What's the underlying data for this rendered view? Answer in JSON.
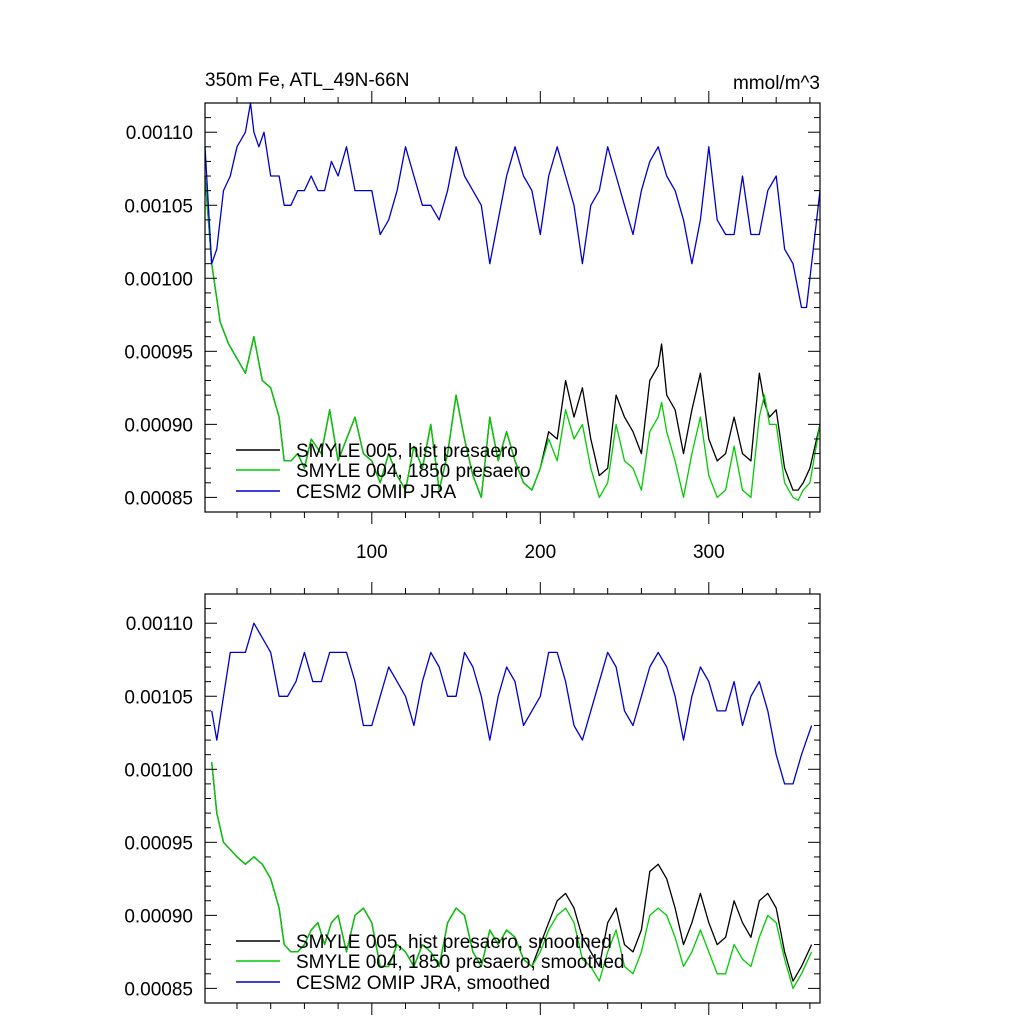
{
  "chart_data": [
    {
      "type": "line",
      "title": "350m Fe, ATL_49N-66N",
      "units": "mmol/m^3",
      "xlim": [
        1,
        366
      ],
      "ylim": [
        0.00084,
        0.00112
      ],
      "x_ticks": [
        100,
        200,
        300
      ],
      "x_tick_labels": [
        "100",
        "200",
        "300"
      ],
      "y_ticks": [
        0.00085,
        0.0009,
        0.00095,
        0.001,
        0.00105,
        0.0011
      ],
      "y_tick_labels": [
        "0.00085",
        "0.00090",
        "0.00095",
        "0.00100",
        "0.00105",
        "0.00110"
      ],
      "legend_position": "bottom-left",
      "series": [
        {
          "name": "SMYLE 005, hist presaero",
          "color": "#000000",
          "x": [
            1,
            5,
            10,
            15,
            20,
            25,
            30,
            35,
            40,
            45,
            48,
            52,
            56,
            60,
            64,
            70,
            75,
            80,
            85,
            90,
            95,
            100,
            105,
            110,
            115,
            120,
            125,
            130,
            135,
            140,
            145,
            150,
            155,
            160,
            165,
            170,
            175,
            180,
            185,
            190,
            195,
            200,
            205,
            210,
            215,
            220,
            225,
            230,
            235,
            240,
            245,
            250,
            255,
            260,
            265,
            270,
            272,
            275,
            280,
            285,
            290,
            295,
            300,
            305,
            310,
            315,
            320,
            325,
            330,
            333,
            336,
            340,
            345,
            350,
            353,
            356,
            360,
            366
          ],
          "y": [
            0.00107,
            0.00101,
            0.00097,
            0.000955,
            0.000945,
            0.000935,
            0.00096,
            0.00093,
            0.000925,
            0.000905,
            0.000875,
            0.000875,
            0.00088,
            0.00087,
            0.00089,
            0.00088,
            0.00091,
            0.000875,
            0.00089,
            0.000905,
            0.00088,
            0.000875,
            0.00086,
            0.00088,
            0.000865,
            0.000855,
            0.000885,
            0.00087,
            0.0009,
            0.000855,
            0.00088,
            0.00092,
            0.00089,
            0.000865,
            0.00085,
            0.000905,
            0.000875,
            0.000895,
            0.000875,
            0.00086,
            0.000855,
            0.00087,
            0.000895,
            0.00089,
            0.00093,
            0.000905,
            0.000925,
            0.00089,
            0.000865,
            0.00087,
            0.00092,
            0.000905,
            0.000895,
            0.00088,
            0.00093,
            0.00094,
            0.000955,
            0.00092,
            0.00091,
            0.00088,
            0.00091,
            0.000935,
            0.00089,
            0.000875,
            0.00088,
            0.000905,
            0.00088,
            0.000875,
            0.000935,
            0.000915,
            0.000905,
            0.00091,
            0.00087,
            0.000855,
            0.000855,
            0.00086,
            0.00087,
            0.0009
          ]
        },
        {
          "name": "SMYLE 004, 1850 presaero",
          "color": "#00cc00",
          "x": [
            1,
            5,
            10,
            15,
            20,
            25,
            30,
            35,
            40,
            45,
            48,
            52,
            56,
            60,
            64,
            70,
            75,
            80,
            85,
            90,
            95,
            100,
            105,
            110,
            115,
            120,
            125,
            130,
            135,
            140,
            145,
            150,
            155,
            160,
            165,
            170,
            175,
            180,
            185,
            190,
            195,
            200,
            205,
            210,
            215,
            220,
            225,
            230,
            235,
            240,
            245,
            250,
            255,
            260,
            265,
            270,
            272,
            275,
            280,
            285,
            290,
            295,
            300,
            305,
            310,
            315,
            320,
            325,
            330,
            333,
            336,
            340,
            345,
            350,
            353,
            356,
            360,
            366
          ],
          "y": [
            0.00107,
            0.00101,
            0.00097,
            0.000955,
            0.000945,
            0.000935,
            0.00096,
            0.00093,
            0.000925,
            0.000905,
            0.000875,
            0.000875,
            0.00088,
            0.00087,
            0.00089,
            0.00088,
            0.00091,
            0.000875,
            0.00089,
            0.000905,
            0.00088,
            0.000875,
            0.00086,
            0.00088,
            0.000865,
            0.000855,
            0.000885,
            0.00087,
            0.0009,
            0.000855,
            0.00088,
            0.00092,
            0.00089,
            0.000865,
            0.00085,
            0.000905,
            0.000875,
            0.000895,
            0.000875,
            0.00086,
            0.000855,
            0.00087,
            0.00089,
            0.000875,
            0.00091,
            0.00089,
            0.0009,
            0.00087,
            0.00085,
            0.00086,
            0.0009,
            0.000875,
            0.00087,
            0.000855,
            0.000895,
            0.000905,
            0.000915,
            0.000895,
            0.000875,
            0.00085,
            0.00088,
            0.000905,
            0.000865,
            0.00085,
            0.000855,
            0.000885,
            0.000855,
            0.00085,
            0.000905,
            0.00092,
            0.0009,
            0.0009,
            0.00086,
            0.00085,
            0.000848,
            0.000855,
            0.00086,
            0.0009
          ]
        },
        {
          "name": "CESM2 OMIP JRA",
          "color": "#0000cc",
          "x": [
            1,
            5,
            8,
            12,
            16,
            20,
            25,
            28,
            30,
            33,
            36,
            40,
            45,
            48,
            52,
            56,
            60,
            64,
            68,
            72,
            76,
            80,
            85,
            90,
            95,
            100,
            105,
            110,
            115,
            120,
            125,
            130,
            135,
            140,
            145,
            150,
            155,
            160,
            165,
            170,
            175,
            180,
            185,
            190,
            195,
            200,
            205,
            210,
            215,
            220,
            225,
            230,
            235,
            240,
            245,
            250,
            255,
            260,
            265,
            270,
            275,
            280,
            285,
            290,
            295,
            300,
            305,
            310,
            315,
            320,
            325,
            330,
            335,
            340,
            345,
            350,
            355,
            358,
            361,
            366
          ],
          "y": [
            0.00109,
            0.00101,
            0.00102,
            0.00106,
            0.00107,
            0.00109,
            0.0011,
            0.00112,
            0.0011,
            0.00109,
            0.0011,
            0.00107,
            0.00107,
            0.00105,
            0.00105,
            0.00106,
            0.00106,
            0.00107,
            0.00106,
            0.00106,
            0.00108,
            0.00107,
            0.00109,
            0.00106,
            0.00106,
            0.00106,
            0.00103,
            0.00104,
            0.00106,
            0.00109,
            0.00107,
            0.00105,
            0.00105,
            0.00104,
            0.00106,
            0.00109,
            0.00107,
            0.00106,
            0.00105,
            0.00101,
            0.00104,
            0.00107,
            0.00109,
            0.00107,
            0.00106,
            0.00103,
            0.00107,
            0.00109,
            0.00107,
            0.00105,
            0.00101,
            0.00105,
            0.00106,
            0.00109,
            0.00107,
            0.00105,
            0.00103,
            0.00106,
            0.00108,
            0.00109,
            0.00107,
            0.00106,
            0.00104,
            0.00101,
            0.00104,
            0.00109,
            0.00104,
            0.00103,
            0.00103,
            0.00107,
            0.00103,
            0.00103,
            0.00106,
            0.00107,
            0.00102,
            0.00101,
            0.00098,
            0.00098,
            0.00101,
            0.00106
          ]
        }
      ]
    },
    {
      "type": "line",
      "title": "",
      "xlim": [
        1,
        366
      ],
      "ylim": [
        0.00084,
        0.00112
      ],
      "x_ticks": [
        100,
        200,
        300
      ],
      "x_tick_labels": [],
      "y_ticks": [
        0.00085,
        0.0009,
        0.00095,
        0.001,
        0.00105,
        0.0011
      ],
      "y_tick_labels": [
        "0.00085",
        "0.00090",
        "0.00095",
        "0.00100",
        "0.00105",
        "0.00110"
      ],
      "legend_position": "bottom-left",
      "series": [
        {
          "name": "SMYLE 005, hist presaero, smoothed",
          "color": "#000000",
          "x": [
            5,
            8,
            12,
            16,
            20,
            25,
            30,
            35,
            40,
            45,
            48,
            52,
            56,
            60,
            64,
            68,
            72,
            76,
            80,
            85,
            90,
            95,
            100,
            105,
            110,
            115,
            120,
            125,
            130,
            135,
            140,
            145,
            150,
            155,
            160,
            165,
            170,
            175,
            180,
            185,
            190,
            195,
            200,
            205,
            210,
            215,
            220,
            225,
            230,
            235,
            240,
            245,
            250,
            255,
            260,
            265,
            270,
            275,
            280,
            285,
            290,
            295,
            300,
            305,
            310,
            315,
            320,
            325,
            330,
            335,
            340,
            345,
            350,
            355,
            361
          ],
          "y": [
            0.001005,
            0.00097,
            0.00095,
            0.000945,
            0.00094,
            0.000935,
            0.00094,
            0.000935,
            0.000925,
            0.000905,
            0.00088,
            0.000875,
            0.000875,
            0.00088,
            0.00089,
            0.000895,
            0.00088,
            0.000895,
            0.0009,
            0.000875,
            0.0009,
            0.000905,
            0.000895,
            0.000865,
            0.000865,
            0.00088,
            0.000875,
            0.000865,
            0.00088,
            0.000875,
            0.000865,
            0.000895,
            0.000905,
            0.0009,
            0.000875,
            0.000865,
            0.00089,
            0.00088,
            0.00089,
            0.000885,
            0.00087,
            0.000865,
            0.00088,
            0.000895,
            0.00091,
            0.000915,
            0.000905,
            0.000885,
            0.000875,
            0.000865,
            0.000895,
            0.000905,
            0.00088,
            0.000875,
            0.00089,
            0.00093,
            0.000935,
            0.000925,
            0.000905,
            0.00088,
            0.000895,
            0.000915,
            0.000895,
            0.00088,
            0.000885,
            0.00091,
            0.000895,
            0.000885,
            0.00091,
            0.000915,
            0.000905,
            0.000875,
            0.000855,
            0.000865,
            0.00088
          ]
        },
        {
          "name": "SMYLE 004, 1850 presaero, smoothed",
          "color": "#00cc00",
          "x": [
            5,
            8,
            12,
            16,
            20,
            25,
            30,
            35,
            40,
            45,
            48,
            52,
            56,
            60,
            64,
            68,
            72,
            76,
            80,
            85,
            90,
            95,
            100,
            105,
            110,
            115,
            120,
            125,
            130,
            135,
            140,
            145,
            150,
            155,
            160,
            165,
            170,
            175,
            180,
            185,
            190,
            195,
            200,
            205,
            210,
            215,
            220,
            225,
            230,
            235,
            240,
            245,
            250,
            255,
            260,
            265,
            270,
            275,
            280,
            285,
            290,
            295,
            300,
            305,
            310,
            315,
            320,
            325,
            330,
            335,
            340,
            345,
            350,
            355,
            361
          ],
          "y": [
            0.001005,
            0.00097,
            0.00095,
            0.000945,
            0.00094,
            0.000935,
            0.00094,
            0.000935,
            0.000925,
            0.000905,
            0.00088,
            0.000875,
            0.000875,
            0.00088,
            0.00089,
            0.000895,
            0.00088,
            0.000895,
            0.0009,
            0.000875,
            0.0009,
            0.000905,
            0.000895,
            0.000865,
            0.000865,
            0.00088,
            0.000875,
            0.000865,
            0.00088,
            0.000875,
            0.000865,
            0.000895,
            0.000905,
            0.0009,
            0.000875,
            0.000865,
            0.00089,
            0.00088,
            0.00089,
            0.000885,
            0.00087,
            0.000865,
            0.000875,
            0.00089,
            0.0009,
            0.000905,
            0.000895,
            0.00087,
            0.000865,
            0.000855,
            0.000875,
            0.00089,
            0.000865,
            0.00086,
            0.000875,
            0.0009,
            0.000905,
            0.0009,
            0.000885,
            0.000865,
            0.000875,
            0.00089,
            0.000875,
            0.00086,
            0.00086,
            0.00088,
            0.00087,
            0.000865,
            0.000885,
            0.0009,
            0.000895,
            0.00087,
            0.00085,
            0.00086,
            0.000875
          ]
        },
        {
          "name": "CESM2 OMIP JRA, smoothed",
          "color": "#0000cc",
          "x": [
            5,
            8,
            12,
            16,
            20,
            25,
            30,
            35,
            40,
            45,
            50,
            55,
            60,
            65,
            70,
            75,
            80,
            85,
            90,
            95,
            100,
            105,
            110,
            115,
            120,
            125,
            130,
            135,
            140,
            145,
            150,
            155,
            160,
            165,
            170,
            175,
            180,
            185,
            190,
            195,
            200,
            205,
            210,
            215,
            220,
            225,
            230,
            235,
            240,
            245,
            250,
            255,
            260,
            265,
            270,
            275,
            280,
            285,
            290,
            295,
            300,
            305,
            310,
            315,
            320,
            325,
            330,
            335,
            340,
            345,
            350,
            355,
            361
          ],
          "y": [
            0.00104,
            0.00102,
            0.00105,
            0.00108,
            0.00108,
            0.00108,
            0.0011,
            0.00109,
            0.00108,
            0.00105,
            0.00105,
            0.00106,
            0.00108,
            0.00106,
            0.00106,
            0.00108,
            0.00108,
            0.00108,
            0.00106,
            0.00103,
            0.00103,
            0.00105,
            0.00107,
            0.00106,
            0.00105,
            0.00103,
            0.00106,
            0.00108,
            0.00107,
            0.00105,
            0.00105,
            0.00108,
            0.00107,
            0.00105,
            0.00102,
            0.00105,
            0.00107,
            0.00106,
            0.00103,
            0.00104,
            0.00105,
            0.00108,
            0.00108,
            0.00106,
            0.00103,
            0.00102,
            0.00104,
            0.00106,
            0.00108,
            0.00107,
            0.00104,
            0.00103,
            0.00105,
            0.00107,
            0.00108,
            0.00107,
            0.00105,
            0.00102,
            0.00105,
            0.00107,
            0.00106,
            0.00104,
            0.00104,
            0.00106,
            0.00103,
            0.00105,
            0.00106,
            0.00104,
            0.00101,
            0.00099,
            0.00099,
            0.00101,
            0.00103
          ]
        }
      ]
    }
  ]
}
